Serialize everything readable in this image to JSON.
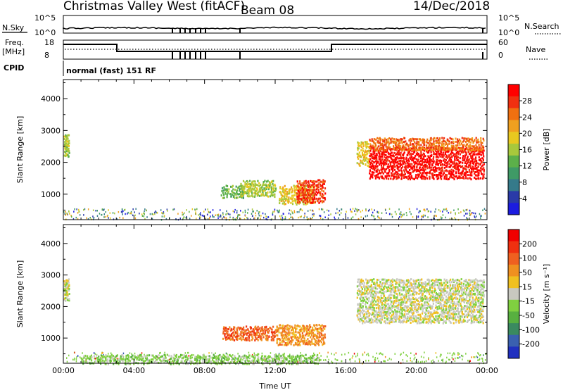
{
  "header": {
    "station": "Christmas Valley West (fitACF)",
    "beam": "Beam 08",
    "date": "14/Dec/2018"
  },
  "aux_panels": {
    "nsky_label": "N.Sky",
    "nsky_ticks": [
      "10^5",
      "10^0"
    ],
    "nsearch_label": "N.Search",
    "nsearch_ticks": [
      "10^5",
      "10^0"
    ],
    "freq_label_1": "Freq.",
    "freq_label_2": "[MHz]",
    "freq_ticks": [
      "18",
      "8"
    ],
    "nave_label": "Nave",
    "nave_ticks": [
      "60",
      "0"
    ],
    "cpid_label": "CPID",
    "cpid_value": "normal (fast) 151 RF"
  },
  "colors": {
    "power_scale": [
      "#1c1ce0",
      "#2a3aa8",
      "#357a8a",
      "#3f9a66",
      "#5cb04a",
      "#a8c83c",
      "#e8c820",
      "#f0a020",
      "#f07010",
      "#f03010",
      "#ff0000"
    ],
    "velocity_scale": [
      "#2030c0",
      "#3a60b0",
      "#3a8a60",
      "#58b040",
      "#80d040",
      "#c8c8c0",
      "#f0c020",
      "#f09020",
      "#f06020",
      "#f03010",
      "#f00000"
    ],
    "ground_scatter": "#c8c8c0"
  },
  "chart_data": [
    {
      "type": "heatmap",
      "panel": "power",
      "ylabel": "Slant Range [km]",
      "xlabel": "Time UT",
      "x_ticks": [
        "00:00",
        "04:00",
        "08:00",
        "12:00",
        "16:00",
        "20:00",
        "00:00"
      ],
      "y_ticks": [
        1000,
        2000,
        3000,
        4000
      ],
      "ylim": [
        200,
        4600
      ],
      "xlim_hours": [
        0,
        24
      ],
      "colorbar_label": "Power [dB]",
      "colorbar_ticks": [
        4,
        8,
        12,
        16,
        20,
        24,
        28
      ],
      "regions": [
        {
          "t0": 0.0,
          "t1": 0.3,
          "r0": 2200,
          "r1": 2900,
          "level": 5
        },
        {
          "t0": 8.9,
          "t1": 10.2,
          "r0": 900,
          "r1": 1300,
          "level": 4
        },
        {
          "t0": 10.0,
          "t1": 12.0,
          "r0": 950,
          "r1": 1450,
          "level": 5
        },
        {
          "t0": 12.2,
          "t1": 14.2,
          "r0": 700,
          "r1": 1300,
          "level": 6
        },
        {
          "t0": 13.2,
          "t1": 14.8,
          "r0": 750,
          "r1": 1500,
          "level": 9
        },
        {
          "t0": 16.6,
          "t1": 17.3,
          "r0": 1900,
          "r1": 2700,
          "level": 6
        },
        {
          "t0": 17.3,
          "t1": 23.8,
          "r0": 1500,
          "r1": 2500,
          "level": 10
        },
        {
          "t0": 17.3,
          "t1": 23.8,
          "r0": 2400,
          "r1": 2800,
          "level": 8
        }
      ]
    },
    {
      "type": "heatmap",
      "panel": "velocity",
      "ylabel": "Slant Range [km]",
      "xlabel": "Time UT",
      "x_ticks": [
        "00:00",
        "04:00",
        "08:00",
        "12:00",
        "16:00",
        "20:00",
        "00:00"
      ],
      "y_ticks": [
        1000,
        2000,
        3000,
        4000
      ],
      "ylim": [
        200,
        4600
      ],
      "xlim_hours": [
        0,
        24
      ],
      "colorbar_label": "Velocity [m s⁻¹]",
      "colorbar_ticks": [
        200,
        100,
        50,
        15,
        -15,
        -50,
        -100,
        -200
      ],
      "regions": [
        {
          "t0": 0.0,
          "t1": 0.3,
          "r0": 2200,
          "r1": 2900,
          "level": 5
        },
        {
          "t0": 9.0,
          "t1": 12.0,
          "r0": 950,
          "r1": 1400,
          "level": 8
        },
        {
          "t0": 12.0,
          "t1": 14.8,
          "r0": 800,
          "r1": 1450,
          "level": 7
        },
        {
          "t0": 16.6,
          "t1": 23.8,
          "r0": 1500,
          "r1": 2900,
          "level": 5
        },
        {
          "t0": 1.0,
          "t1": 14.5,
          "r0": 200,
          "r1": 500,
          "level": 4
        }
      ]
    }
  ]
}
